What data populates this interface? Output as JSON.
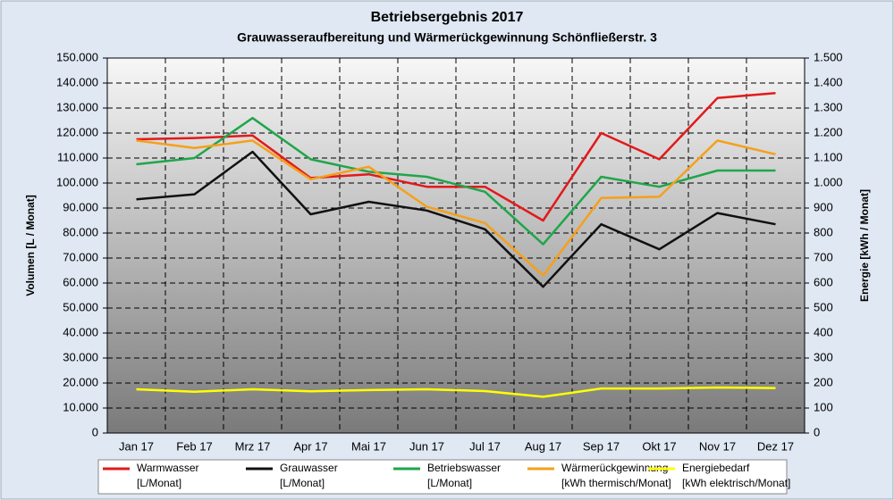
{
  "chart_data": {
    "type": "line",
    "title": "Betriebsergebnis 2017",
    "subtitle": "Grauwasseraufbereitung und Wärmerückgewinnung Schönfließerstr. 3",
    "y_label": "Volumen [L / Monat]",
    "y2_label": "Energie [kWh / Monat]",
    "categories": [
      "Jan 17",
      "Feb 17",
      "Mrz 17",
      "Apr 17",
      "Mai 17",
      "Jun 17",
      "Jul 17",
      "Aug 17",
      "Sep 17",
      "Okt 17",
      "Nov 17",
      "Dez 17"
    ],
    "ylim": [
      0,
      150000
    ],
    "yticks": [
      0,
      {
        "value": 10000,
        "label": "10.000"
      },
      {
        "value": 20000,
        "label": "20.000"
      },
      {
        "value": 30000,
        "label": "30.000"
      },
      {
        "value": 40000,
        "label": "40.000"
      },
      {
        "value": 50000,
        "label": "50.000"
      },
      {
        "value": 60000,
        "label": "60.000"
      },
      {
        "value": 70000,
        "label": "70.000"
      },
      {
        "value": 80000,
        "label": "80.000"
      },
      {
        "value": 90000,
        "label": "90.000"
      },
      {
        "value": 100000,
        "label": "100.000"
      },
      {
        "value": 110000,
        "label": "110.000"
      },
      {
        "value": 120000,
        "label": "120.000"
      },
      {
        "value": 130000,
        "label": "130.000"
      },
      {
        "value": 140000,
        "label": "140.000"
      },
      {
        "value": 150000,
        "label": "150.000"
      }
    ],
    "y2lim": [
      0,
      1500
    ],
    "y2ticks": [
      0,
      100,
      200,
      300,
      400,
      500,
      600,
      700,
      800,
      900,
      {
        "value": 1000,
        "label": "1.000"
      },
      {
        "value": 1100,
        "label": "1.100"
      },
      {
        "value": 1200,
        "label": "1.200"
      },
      {
        "value": 1300,
        "label": "1.300"
      },
      {
        "value": 1400,
        "label": "1.400"
      },
      {
        "value": 1500,
        "label": "1.500"
      }
    ],
    "grid": true,
    "legend": "bottom",
    "series": [
      {
        "name": "Warmwasser",
        "unit": "[L/Monat]",
        "color": "#e3191b",
        "values": [
          117500,
          118000,
          119000,
          102000,
          103500,
          98500,
          98500,
          85000,
          120000,
          109500,
          134000,
          136000
        ]
      },
      {
        "name": "Grauwasser",
        "unit": "[L/Monat]",
        "color": "#111111",
        "values": [
          93500,
          95500,
          112500,
          87500,
          92500,
          89000,
          81500,
          58500,
          83500,
          73500,
          88000,
          83500
        ]
      },
      {
        "name": "Betriebswasser",
        "unit": "[L/Monat]",
        "color": "#1fa64a",
        "values": [
          107500,
          110000,
          126000,
          109500,
          104500,
          102500,
          96500,
          75500,
          102500,
          98500,
          105000,
          105000
        ]
      },
      {
        "name": "Wärmerückgewinnung",
        "unit": "[kWh thermisch/Monat]",
        "color": "#f5a01a",
        "axis": "y2",
        "values": [
          1170,
          1140,
          1170,
          1015,
          1065,
          905,
          840,
          630,
          940,
          945,
          1170,
          1115
        ]
      },
      {
        "name": "Energiebedarf",
        "unit": "[kWh elektrisch/Monat]",
        "color": "#ffff00",
        "axis": "y2",
        "values": [
          175,
          165,
          175,
          167,
          172,
          175,
          168,
          145,
          178,
          178,
          182,
          180
        ]
      }
    ]
  }
}
